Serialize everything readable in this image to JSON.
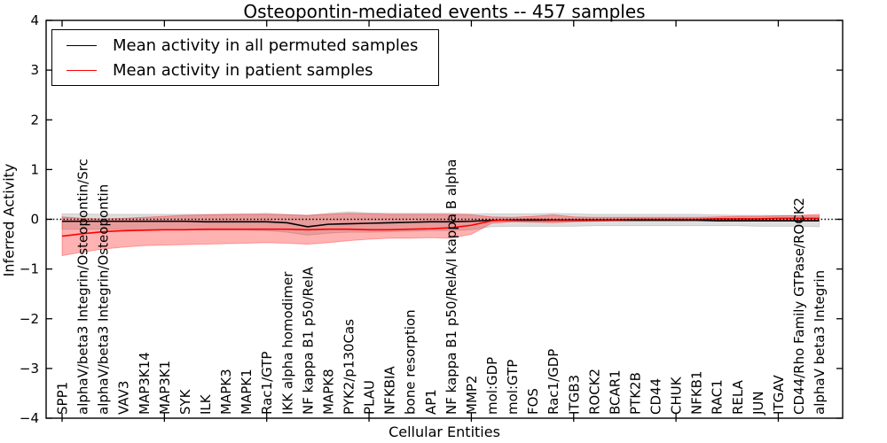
{
  "chart_data": {
    "type": "line",
    "title": "Osteopontin-mediated events -- 457 samples",
    "xlabel": "Cellular Entities",
    "ylabel": "Inferred Activity",
    "ylim": [
      -4,
      4
    ],
    "ytick_labels": [
      "4",
      "3",
      "2",
      "1",
      "0",
      "−1",
      "−2",
      "−3",
      "−4"
    ],
    "xtick_major_indices": [
      0,
      5,
      10,
      15,
      20,
      25,
      30,
      35
    ],
    "grid": false,
    "reference_line_y": 0,
    "legend": {
      "position": "upper left",
      "items": [
        {
          "label": "Mean activity in all permuted samples",
          "color": "#000000"
        },
        {
          "label": "Mean activity in patient samples",
          "color": "#ff0000"
        }
      ]
    },
    "categories": [
      "SPP1",
      "alphaV/beta3 Integrin/Osteopontin/Src",
      "alphaV/beta3 Integrin/Osteopontin",
      "VAV3",
      "MAP3K14",
      "MAP3K1",
      "SYK",
      "ILK",
      "MAPK3",
      "MAPK1",
      "Rac1/GTP",
      "IKK alpha homodimer",
      "NF kappa B1 p50/RelA",
      "MAPK8",
      "PYK2/p130Cas",
      "PLAU",
      "NFKBIA",
      "bone resorption",
      "AP1",
      "NF kappa B1 p50/RelA/I kappa B alpha",
      "MMP2",
      "mol:GDP",
      "mol:GTP",
      "FOS",
      "Rac1/GDP",
      "ITGB3",
      "ROCK2",
      "BCAR1",
      "PTK2B",
      "CD44",
      "CHUK",
      "NFKB1",
      "RAC1",
      "RELA",
      "JUN",
      "ITGAV",
      "CD44/Rho Family GTPase/ROCK2",
      "alphaV beta3 Integrin"
    ],
    "series": [
      {
        "name": "Mean activity in all permuted samples",
        "color": "#000000",
        "values": [
          -0.04,
          -0.04,
          -0.04,
          -0.04,
          -0.04,
          -0.04,
          -0.04,
          -0.05,
          -0.05,
          -0.05,
          -0.05,
          -0.07,
          -0.15,
          -0.1,
          -0.09,
          -0.08,
          -0.07,
          -0.06,
          -0.05,
          -0.05,
          -0.04,
          -0.02,
          -0.02,
          -0.02,
          -0.02,
          -0.02,
          -0.02,
          -0.02,
          -0.02,
          -0.02,
          -0.02,
          -0.02,
          -0.03,
          -0.03,
          -0.03,
          -0.03,
          -0.03,
          -0.03
        ]
      },
      {
        "name": "Mean activity in patient samples",
        "color": "#ff0000",
        "values": [
          -0.34,
          -0.29,
          -0.25,
          -0.23,
          -0.22,
          -0.21,
          -0.21,
          -0.2,
          -0.2,
          -0.2,
          -0.2,
          -0.2,
          -0.21,
          -0.2,
          -0.2,
          -0.21,
          -0.21,
          -0.2,
          -0.19,
          -0.17,
          -0.12,
          -0.03,
          -0.01,
          0.0,
          -0.01,
          -0.01,
          -0.01,
          -0.01,
          0.0,
          0.0,
          0.0,
          0.0,
          0.01,
          0.01,
          0.01,
          0.02,
          0.02,
          0.02
        ]
      }
    ],
    "bands": [
      {
        "name": "permuted-samples-range",
        "color": "rgba(0,0,0,0.13)",
        "upper": [
          0.11,
          0.11,
          0.1,
          0.1,
          0.1,
          0.1,
          0.1,
          0.1,
          0.1,
          0.11,
          0.12,
          0.1,
          0.08,
          0.12,
          0.15,
          0.13,
          0.12,
          0.12,
          0.12,
          0.12,
          0.11,
          0.11,
          0.11,
          0.11,
          0.12,
          0.11,
          0.1,
          0.1,
          0.1,
          0.1,
          0.1,
          0.1,
          0.09,
          0.08,
          0.08,
          0.08,
          0.07,
          0.07
        ],
        "lower": [
          -0.2,
          -0.2,
          -0.2,
          -0.21,
          -0.21,
          -0.21,
          -0.21,
          -0.22,
          -0.22,
          -0.22,
          -0.23,
          -0.26,
          -0.32,
          -0.28,
          -0.26,
          -0.26,
          -0.25,
          -0.24,
          -0.23,
          -0.23,
          -0.21,
          -0.15,
          -0.14,
          -0.14,
          -0.14,
          -0.14,
          -0.13,
          -0.13,
          -0.13,
          -0.13,
          -0.13,
          -0.13,
          -0.13,
          -0.13,
          -0.14,
          -0.14,
          -0.14,
          -0.15
        ]
      },
      {
        "name": "patient-samples-range",
        "color": "rgba(255,0,0,0.30)",
        "upper": [
          0.05,
          0.02,
          0.01,
          0.02,
          0.04,
          0.06,
          0.08,
          0.09,
          0.1,
          0.1,
          0.1,
          0.09,
          0.08,
          0.1,
          0.12,
          0.11,
          0.1,
          0.1,
          0.1,
          0.1,
          0.09,
          0.05,
          0.04,
          0.06,
          0.09,
          0.05,
          0.04,
          0.04,
          0.04,
          0.04,
          0.04,
          0.04,
          0.05,
          0.06,
          0.06,
          0.07,
          0.08,
          0.1
        ],
        "lower": [
          -0.73,
          -0.66,
          -0.6,
          -0.56,
          -0.53,
          -0.52,
          -0.51,
          -0.5,
          -0.49,
          -0.48,
          -0.47,
          -0.48,
          -0.5,
          -0.47,
          -0.43,
          -0.4,
          -0.38,
          -0.38,
          -0.37,
          -0.38,
          -0.3,
          -0.08,
          -0.05,
          -0.06,
          -0.07,
          -0.05,
          -0.04,
          -0.03,
          -0.03,
          -0.03,
          -0.03,
          -0.03,
          -0.02,
          -0.02,
          -0.02,
          -0.02,
          -0.03,
          -0.03
        ]
      }
    ]
  }
}
